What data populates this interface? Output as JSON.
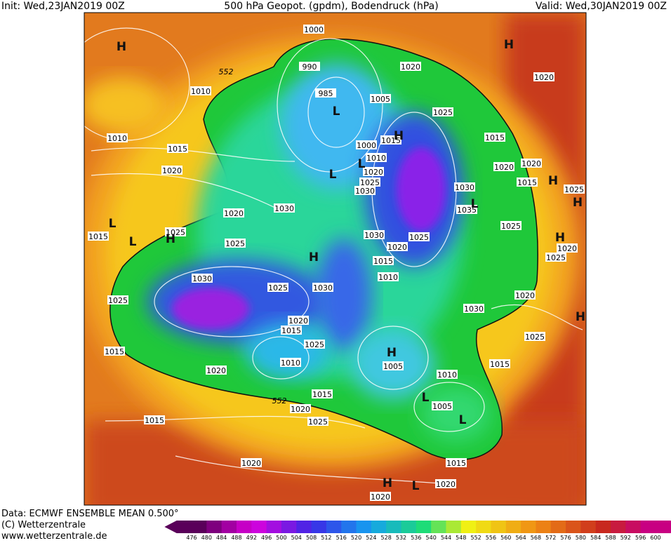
{
  "header": {
    "init": "Init: Wed,23JAN2019 00Z",
    "title": "500 hPa Geopot. (gpdm), Bodendruck (hPa)",
    "valid": "Valid: Wed,30JAN2019 00Z"
  },
  "map": {
    "contour_labels": [
      "552",
      "552"
    ],
    "isobar_labels": [
      "1000",
      "990",
      "985",
      "1005",
      "1020",
      "1025",
      "1015",
      "1020",
      "1010",
      "1010",
      "1015",
      "1020",
      "1010",
      "1020",
      "1025",
      "1030",
      "1015",
      "1000",
      "1030",
      "1035",
      "1020",
      "1020",
      "1015",
      "1025",
      "1030",
      "1020",
      "1025",
      "1015",
      "1025",
      "1030",
      "1025",
      "1020",
      "1015",
      "1010",
      "1025",
      "1020",
      "1025",
      "1020",
      "1030",
      "1030",
      "1025",
      "1030",
      "1025",
      "1020",
      "1015",
      "1025",
      "1010",
      "1015",
      "1020",
      "1005",
      "1010",
      "1015",
      "1025",
      "1005",
      "1015",
      "1020",
      "1025",
      "1015",
      "1020",
      "1015",
      "1020",
      "1020"
    ],
    "pressure_centers": [
      "H",
      "H",
      "L",
      "H",
      "L",
      "L",
      "H",
      "H",
      "L",
      "L",
      "L",
      "H",
      "H",
      "H",
      "H",
      "H",
      "L",
      "L",
      "H",
      "L"
    ]
  },
  "footer": {
    "source": "Data: ECMWF ENSEMBLE MEAN 0.500°",
    "copyright": "(C) Wetterzentrale",
    "url": "www.wetterzentrale.de"
  },
  "colorbar": {
    "labels": [
      476,
      480,
      484,
      488,
      492,
      496,
      500,
      504,
      508,
      512,
      516,
      520,
      524,
      528,
      532,
      536,
      540,
      544,
      548,
      552,
      556,
      560,
      564,
      568,
      572,
      576,
      580,
      584,
      588,
      592,
      596,
      600
    ]
  }
}
